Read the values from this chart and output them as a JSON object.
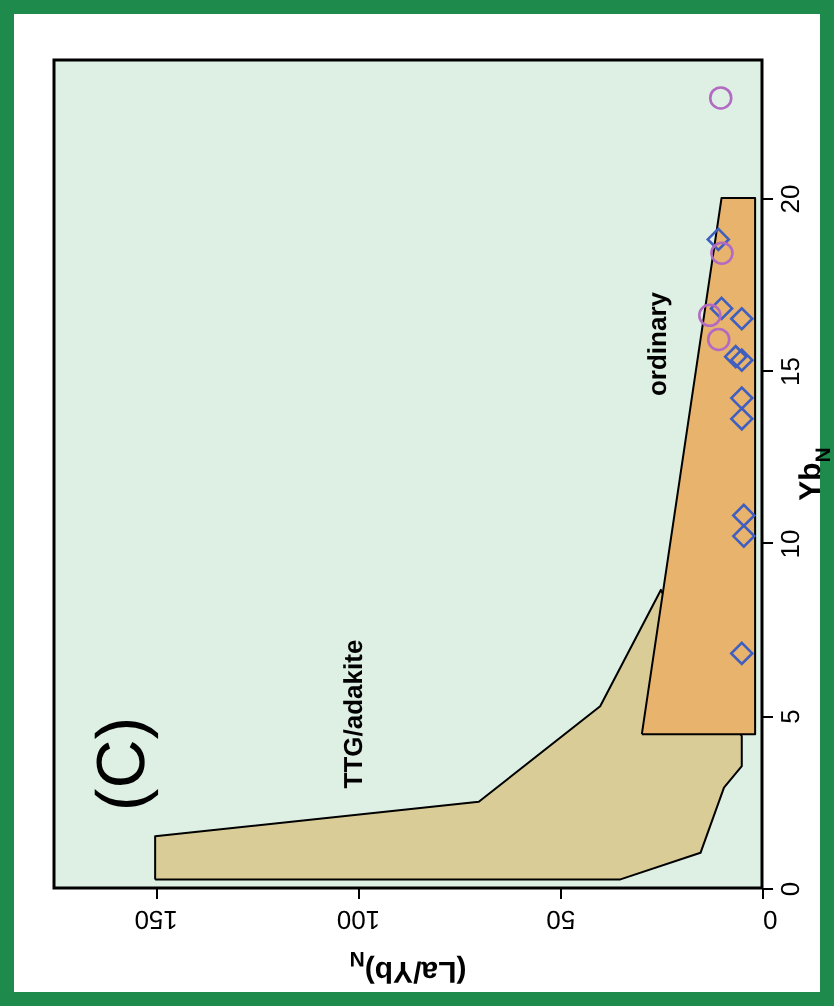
{
  "chart_data": {
    "type": "scatter",
    "orientation": "horizontal",
    "title": "(C)",
    "xlabel": "(La/Yb)$_{N}$",
    "ylabel": "Yb$_{N}$",
    "xlim": [
      175,
      0
    ],
    "ylim": [
      0,
      24
    ],
    "xticks": [
      150,
      100,
      50,
      0
    ],
    "yticks": [
      0,
      5,
      10,
      15,
      20
    ],
    "grid": false,
    "series": [
      {
        "type": "area",
        "color": "#d9cc97",
        "x": [
          0.25,
          1.5,
          2.5,
          5.27,
          8.64,
          4.4,
          3.53,
          2.91,
          1.02,
          0.25,
          0.25
        ],
        "values": [
          150,
          150,
          70,
          40,
          25,
          5,
          5,
          9.4,
          15.2,
          35,
          150
        ]
      },
      {
        "type": "area",
        "color": "#e8b36c",
        "x": [
          4.46,
          20,
          20,
          4.46,
          4.46
        ],
        "values": [
          29.7,
          10,
          1.7,
          1.7,
          29.7
        ]
      },
      {
        "type": "scatter",
        "marker": "diamond",
        "color": "#3f5fc0",
        "x": [
          18.8,
          16.8,
          16.5,
          15.4,
          15.3,
          14.2,
          13.6,
          10.8,
          10.2,
          6.8
        ],
        "values": [
          10.8,
          10.0,
          5.0,
          6.5,
          5.0,
          5.0,
          5.0,
          4.5,
          4.5,
          5.0
        ]
      },
      {
        "type": "scatter",
        "marker": "circle",
        "color": "#b36ac2",
        "x": [
          22.9,
          18.4,
          16.6,
          15.9
        ],
        "values": [
          10.2,
          9.9,
          12.9,
          10.7
        ]
      }
    ],
    "annotations": [
      "TTG/adakite",
      "ordinary"
    ]
  }
}
